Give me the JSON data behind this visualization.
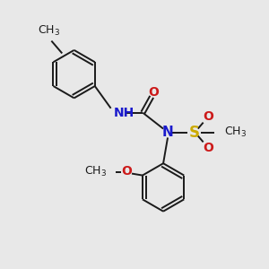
{
  "background_color": "#e8e8e8",
  "bond_color": "#1a1a1a",
  "atom_colors": {
    "N": "#1a1acc",
    "O": "#cc1a1a",
    "S": "#ccaa00",
    "H": "#4a9090",
    "C": "#1a1a1a"
  },
  "figsize": [
    3.0,
    3.0
  ],
  "dpi": 100
}
